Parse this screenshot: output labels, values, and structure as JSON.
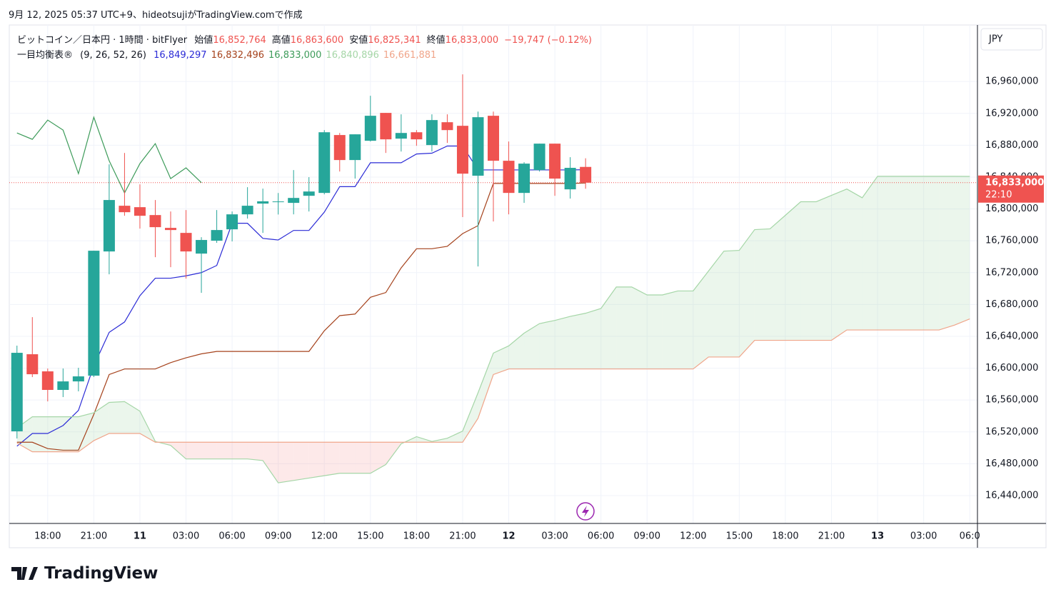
{
  "header": {
    "created": "9月 12, 2025 05:37 UTC+9、hideotsujiがTradingView.comで作成",
    "brand": "TradingView"
  },
  "chart_data": {
    "type": "candlestick",
    "legend": {
      "symbol": "ビットコイン／日本円 · 1時間 · bitFlyer",
      "ohlc": [
        {
          "label": "始値",
          "value": "16,852,764"
        },
        {
          "label": "高値",
          "value": "16,863,600"
        },
        {
          "label": "安値",
          "value": "16,825,341"
        },
        {
          "label": "終値",
          "value": "16,833,000"
        }
      ],
      "change": "−19,747 (−0.12%)",
      "indicator": "一目均衡表®",
      "params": "(9, 26, 52, 26)",
      "indicator_values": [
        "16,849,297",
        "16,832,496",
        "16,833,000",
        "16,840,896",
        "16,661,881"
      ]
    },
    "currency": "JPY",
    "price_label": "16,833,000",
    "countdown": "22:10",
    "up_color": "#26a69a",
    "down_color": "#ef5350",
    "open": [
      16520700,
      16617500,
      16596000,
      16572700,
      16583400,
      16590600,
      16746600,
      16804000,
      16802200,
      16792300,
      16776200,
      16769900,
      16743900,
      16760100,
      16774400,
      16793200,
      16806700,
      16808500,
      16807600,
      16816500,
      16820100,
      16892800,
      16861400,
      16885600,
      16920600,
      16888300,
      16896300,
      16880200,
      16908900,
      16904400,
      16841700,
      16917000,
      16860500,
      16820100,
      16848800,
      16882000,
      16824600,
      16852764
    ],
    "high": [
      16628300,
      16664100,
      16599600,
      16599600,
      16600500,
      16747500,
      16856000,
      16870300,
      16830900,
      16811200,
      16796800,
      16798600,
      16764500,
      16798600,
      16796800,
      16827300,
      16825500,
      16820000,
      16848800,
      16839900,
      16899000,
      16895400,
      16893700,
      16942100,
      16920600,
      16918800,
      16899000,
      16918800,
      16918800,
      16969000,
      16922300,
      16922300,
      16884700,
      16858700,
      16882000,
      16882000,
      16865000,
      16863600
    ],
    "low": [
      16511700,
      16588800,
      16558300,
      16563700,
      16570900,
      16588800,
      16717900,
      16791400,
      16775300,
      16739400,
      16726900,
      16712500,
      16694600,
      16757400,
      16759200,
      16787900,
      16769900,
      16793000,
      16793200,
      16796800,
      16818300,
      16847000,
      16838100,
      16884700,
      16870300,
      16872100,
      16879300,
      16872100,
      16882900,
      16789700,
      16727800,
      16784300,
      16793200,
      16807600,
      16847000,
      16816500,
      16813000,
      16825341
    ],
    "close": [
      16619300,
      16592400,
      16572700,
      16583400,
      16589700,
      16747500,
      16811200,
      16795900,
      16791400,
      16777100,
      16773500,
      16746600,
      16761000,
      16773500,
      16793200,
      16804000,
      16809600,
      16809400,
      16813800,
      16821900,
      16896300,
      16861400,
      16893700,
      16917000,
      16887400,
      16895400,
      16887400,
      16911600,
      16899000,
      16844300,
      16915200,
      16860500,
      16820100,
      16856900,
      16882000,
      16838100,
      16851600,
      16833000
    ],
    "lines": [
      {
        "color": "#2b2bd6",
        "values": [
          16502000,
          16518000,
          16518000,
          16528000,
          16547000,
          16603000,
          16645000,
          16658000,
          16691000,
          16713000,
          16713000,
          16716000,
          16720000,
          16729000,
          16782000,
          16782000,
          16763000,
          16761000,
          16773000,
          16773000,
          16796000,
          16828000,
          16828000,
          16858000,
          16858000,
          16858000,
          16869000,
          16870000,
          16879000,
          16879000,
          16849000,
          16849000,
          16849000,
          16849000,
          16849000,
          16849000,
          16849000,
          16849297
        ]
      },
      {
        "color": "#a5421c",
        "values": [
          16507000,
          16507000,
          16499000,
          16497000,
          16497000,
          16542000,
          16592000,
          16599000,
          16599000,
          16599000,
          16607000,
          16613000,
          16618000,
          16621000,
          16621000,
          16621000,
          16621000,
          16621000,
          16621000,
          16621000,
          16647000,
          16666000,
          16668000,
          16689000,
          16695000,
          16726000,
          16750000,
          16750000,
          16753000,
          16769000,
          16779000,
          16832000,
          16832000,
          16832000,
          16832000,
          16832000,
          16832000,
          16832496
        ]
      },
      {
        "color": "#3d9b5a",
        "values": [
          16895400,
          16887400,
          16911600,
          16899000,
          16844300,
          16915200,
          16860500,
          16820100,
          16856900,
          16882000,
          16838100,
          16851600,
          16833000
        ]
      },
      {
        "color": "#a5d6a7",
        "values": [
          16525000,
          16539000,
          16539000,
          16539000,
          16539000,
          16544000,
          16557000,
          16558000,
          16546000,
          16508000,
          16503000,
          16486000,
          16486000,
          16486000,
          16486000,
          16486000,
          16484000,
          16456000,
          16459000,
          16462000,
          16465000,
          16468000,
          16468000,
          16468000,
          16479000,
          16505000,
          16514000,
          16508000,
          16512000,
          16521000,
          16569000,
          16619000,
          16628000,
          16644000,
          16656000,
          16660000,
          16665000,
          16669000,
          16675000,
          16702000,
          16702000,
          16692000,
          16692000,
          16697000,
          16697000,
          16722000,
          16747000,
          16748000,
          16774000,
          16775000,
          16792000,
          16809000,
          16809000,
          16817000,
          16825000,
          16814000,
          16841000,
          16841000,
          16841000,
          16841000,
          16841000,
          16841000,
          16840896
        ]
      },
      {
        "color": "#f0a58a",
        "values": [
          16506000,
          16495000,
          16495000,
          16495000,
          16495000,
          16509000,
          16518000,
          16518000,
          16518000,
          16507000,
          16507000,
          16507000,
          16507000,
          16507000,
          16507000,
          16507000,
          16507000,
          16507000,
          16507000,
          16507000,
          16507000,
          16507000,
          16507000,
          16507000,
          16507000,
          16507000,
          16507000,
          16507000,
          16507000,
          16507000,
          16537000,
          16592000,
          16599000,
          16599000,
          16599000,
          16599000,
          16599000,
          16599000,
          16599000,
          16599000,
          16599000,
          16599000,
          16599000,
          16599000,
          16599000,
          16614000,
          16614000,
          16614000,
          16635000,
          16635000,
          16635000,
          16635000,
          16635000,
          16635000,
          16648000,
          16648000,
          16648000,
          16648000,
          16648000,
          16648000,
          16648000,
          16654000,
          16661881
        ]
      }
    ],
    "cloud": {
      "up_color": "rgba(165,214,167,0.22)",
      "down_color": "rgba(244,143,143,0.2)"
    },
    "xlim": [
      -0.5,
      62.5
    ],
    "xticks": [
      {
        "value": 2,
        "label": "18:00"
      },
      {
        "value": 5,
        "label": "21:00"
      },
      {
        "value": 8,
        "label": "11"
      },
      {
        "value": 11,
        "label": "03:00"
      },
      {
        "value": 14,
        "label": "06:00"
      },
      {
        "value": 17,
        "label": "09:00"
      },
      {
        "value": 20,
        "label": "12:00"
      },
      {
        "value": 23,
        "label": "15:00"
      },
      {
        "value": 26,
        "label": "18:00"
      },
      {
        "value": 29,
        "label": "21:00"
      },
      {
        "value": 32,
        "label": "12"
      },
      {
        "value": 35,
        "label": "03:00"
      },
      {
        "value": 38,
        "label": "06:00"
      },
      {
        "value": 41,
        "label": "09:00"
      },
      {
        "value": 44,
        "label": "12:00"
      },
      {
        "value": 47,
        "label": "15:00"
      },
      {
        "value": 50,
        "label": "18:00"
      },
      {
        "value": 53,
        "label": "21:00"
      },
      {
        "value": 56,
        "label": "13"
      },
      {
        "value": 59,
        "label": "03:00"
      },
      {
        "value": 62,
        "label": "06:0"
      }
    ],
    "ylim": [
      16405000,
      17031000
    ],
    "yticks": [
      {
        "value": 16440000,
        "label": "16,440,000"
      },
      {
        "value": 16480000,
        "label": "16,480,000"
      },
      {
        "value": 16520000,
        "label": "16,520,000"
      },
      {
        "value": 16560000,
        "label": "16,560,000"
      },
      {
        "value": 16600000,
        "label": "16,600,000"
      },
      {
        "value": 16640000,
        "label": "16,640,000"
      },
      {
        "value": 16680000,
        "label": "16,680,000"
      },
      {
        "value": 16720000,
        "label": "16,720,000"
      },
      {
        "value": 16760000,
        "label": "16,760,000"
      },
      {
        "value": 16800000,
        "label": "16,800,000"
      },
      {
        "value": 16840000,
        "label": "16,840,000"
      },
      {
        "value": 16880000,
        "label": "16,880,000"
      },
      {
        "value": 16920000,
        "label": "16,920,000"
      },
      {
        "value": 16960000,
        "label": "16,960,000"
      }
    ],
    "grid": true
  }
}
